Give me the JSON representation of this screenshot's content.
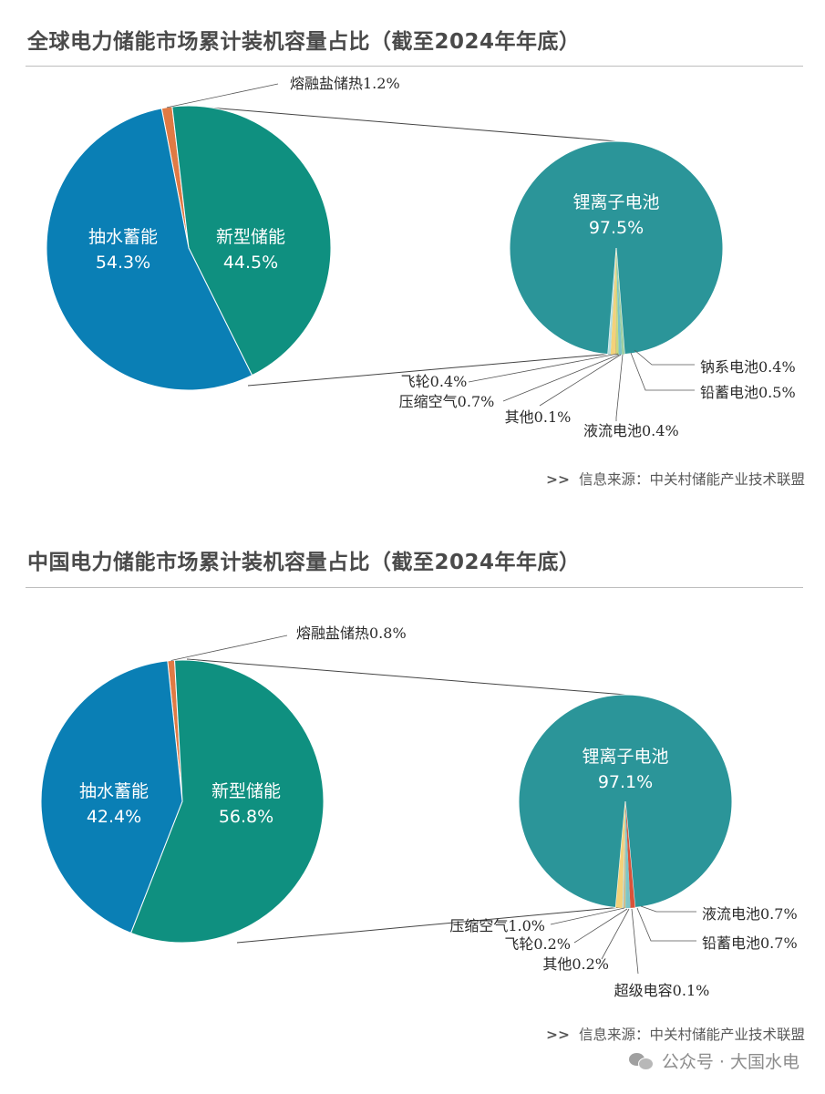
{
  "sections": {
    "global": {
      "title": "全球电力储能市场累计装机容量占比（截至2024年年底）",
      "source_arrow": ">>",
      "source": "信息来源：中关村储能产业技术联盟"
    },
    "china": {
      "title": "中国电力储能市场累计装机容量占比（截至2024年年底）",
      "source_arrow": ">>",
      "source": "信息来源：中关村储能产业技术联盟"
    }
  },
  "watermark": "公众号 · 大国水电",
  "colors": {
    "pumped": "#0a7fb5",
    "new": "#0f9080",
    "molten": "#e07a44",
    "lithium": "#2b9599"
  },
  "chart_data": [
    {
      "type": "pie",
      "title": "全球电力储能市场累计装机容量占比（截至2024年年底）",
      "main": [
        {
          "name": "熔融盐储热",
          "value": 1.2,
          "label": "熔融盐储热1.2%",
          "color": "#e07a44"
        },
        {
          "name": "新型储能",
          "value": 44.5,
          "label_name": "新型储能",
          "label_value": "44.5%",
          "color": "#0f9080"
        },
        {
          "name": "抽水蓄能",
          "value": 54.3,
          "label_name": "抽水蓄能",
          "label_value": "54.3%",
          "color": "#0a7fb5"
        }
      ],
      "breakdown": [
        {
          "name": "锂离子电池",
          "value": 97.5,
          "label_name": "锂离子电池",
          "label_value": "97.5%",
          "color": "#2b9599"
        },
        {
          "name": "钠系电池",
          "value": 0.4,
          "label": "钠系电池0.4%",
          "color": "#9fcfa0"
        },
        {
          "name": "铅蓄电池",
          "value": 0.5,
          "label": "铅蓄电池0.5%",
          "color": "#7cc5c8"
        },
        {
          "name": "液流电池",
          "value": 0.4,
          "label": "液流电池0.4%",
          "color": "#c8d87a"
        },
        {
          "name": "其他",
          "value": 0.1,
          "label": "其他0.1%",
          "color": "#d9a86a"
        },
        {
          "name": "压缩空气",
          "value": 0.7,
          "label": "压缩空气0.7%",
          "color": "#f3d27a"
        },
        {
          "name": "飞轮",
          "value": 0.4,
          "label": "飞轮0.4%",
          "color": "#b7dfe0"
        }
      ]
    },
    {
      "type": "pie",
      "title": "中国电力储能市场累计装机容量占比（截至2024年年底）",
      "main": [
        {
          "name": "熔融盐储热",
          "value": 0.8,
          "label": "熔融盐储热0.8%",
          "color": "#e07a44"
        },
        {
          "name": "新型储能",
          "value": 56.8,
          "label_name": "新型储能",
          "label_value": "56.8%",
          "color": "#0f9080"
        },
        {
          "name": "抽水蓄能",
          "value": 42.4,
          "label_name": "抽水蓄能",
          "label_value": "42.4%",
          "color": "#0a7fb5"
        }
      ],
      "breakdown": [
        {
          "name": "锂离子电池",
          "value": 97.1,
          "label_name": "锂离子电池",
          "label_value": "97.1%",
          "color": "#2b9599"
        },
        {
          "name": "液流电池",
          "value": 0.7,
          "label": "液流电池0.7%",
          "color": "#d9533a"
        },
        {
          "name": "铅蓄电池",
          "value": 0.7,
          "label": "铅蓄电池0.7%",
          "color": "#7cc5c8"
        },
        {
          "name": "超级电容",
          "value": 0.1,
          "label": "超级电容0.1%",
          "color": "#9fcfa0"
        },
        {
          "name": "其他",
          "value": 0.2,
          "label": "其他0.2%",
          "color": "#d9a86a"
        },
        {
          "name": "飞轮",
          "value": 0.2,
          "label": "飞轮0.2%",
          "color": "#b7dfe0"
        },
        {
          "name": "压缩空气",
          "value": 1.0,
          "label": "压缩空气1.0%",
          "color": "#f3d27a"
        }
      ]
    }
  ]
}
